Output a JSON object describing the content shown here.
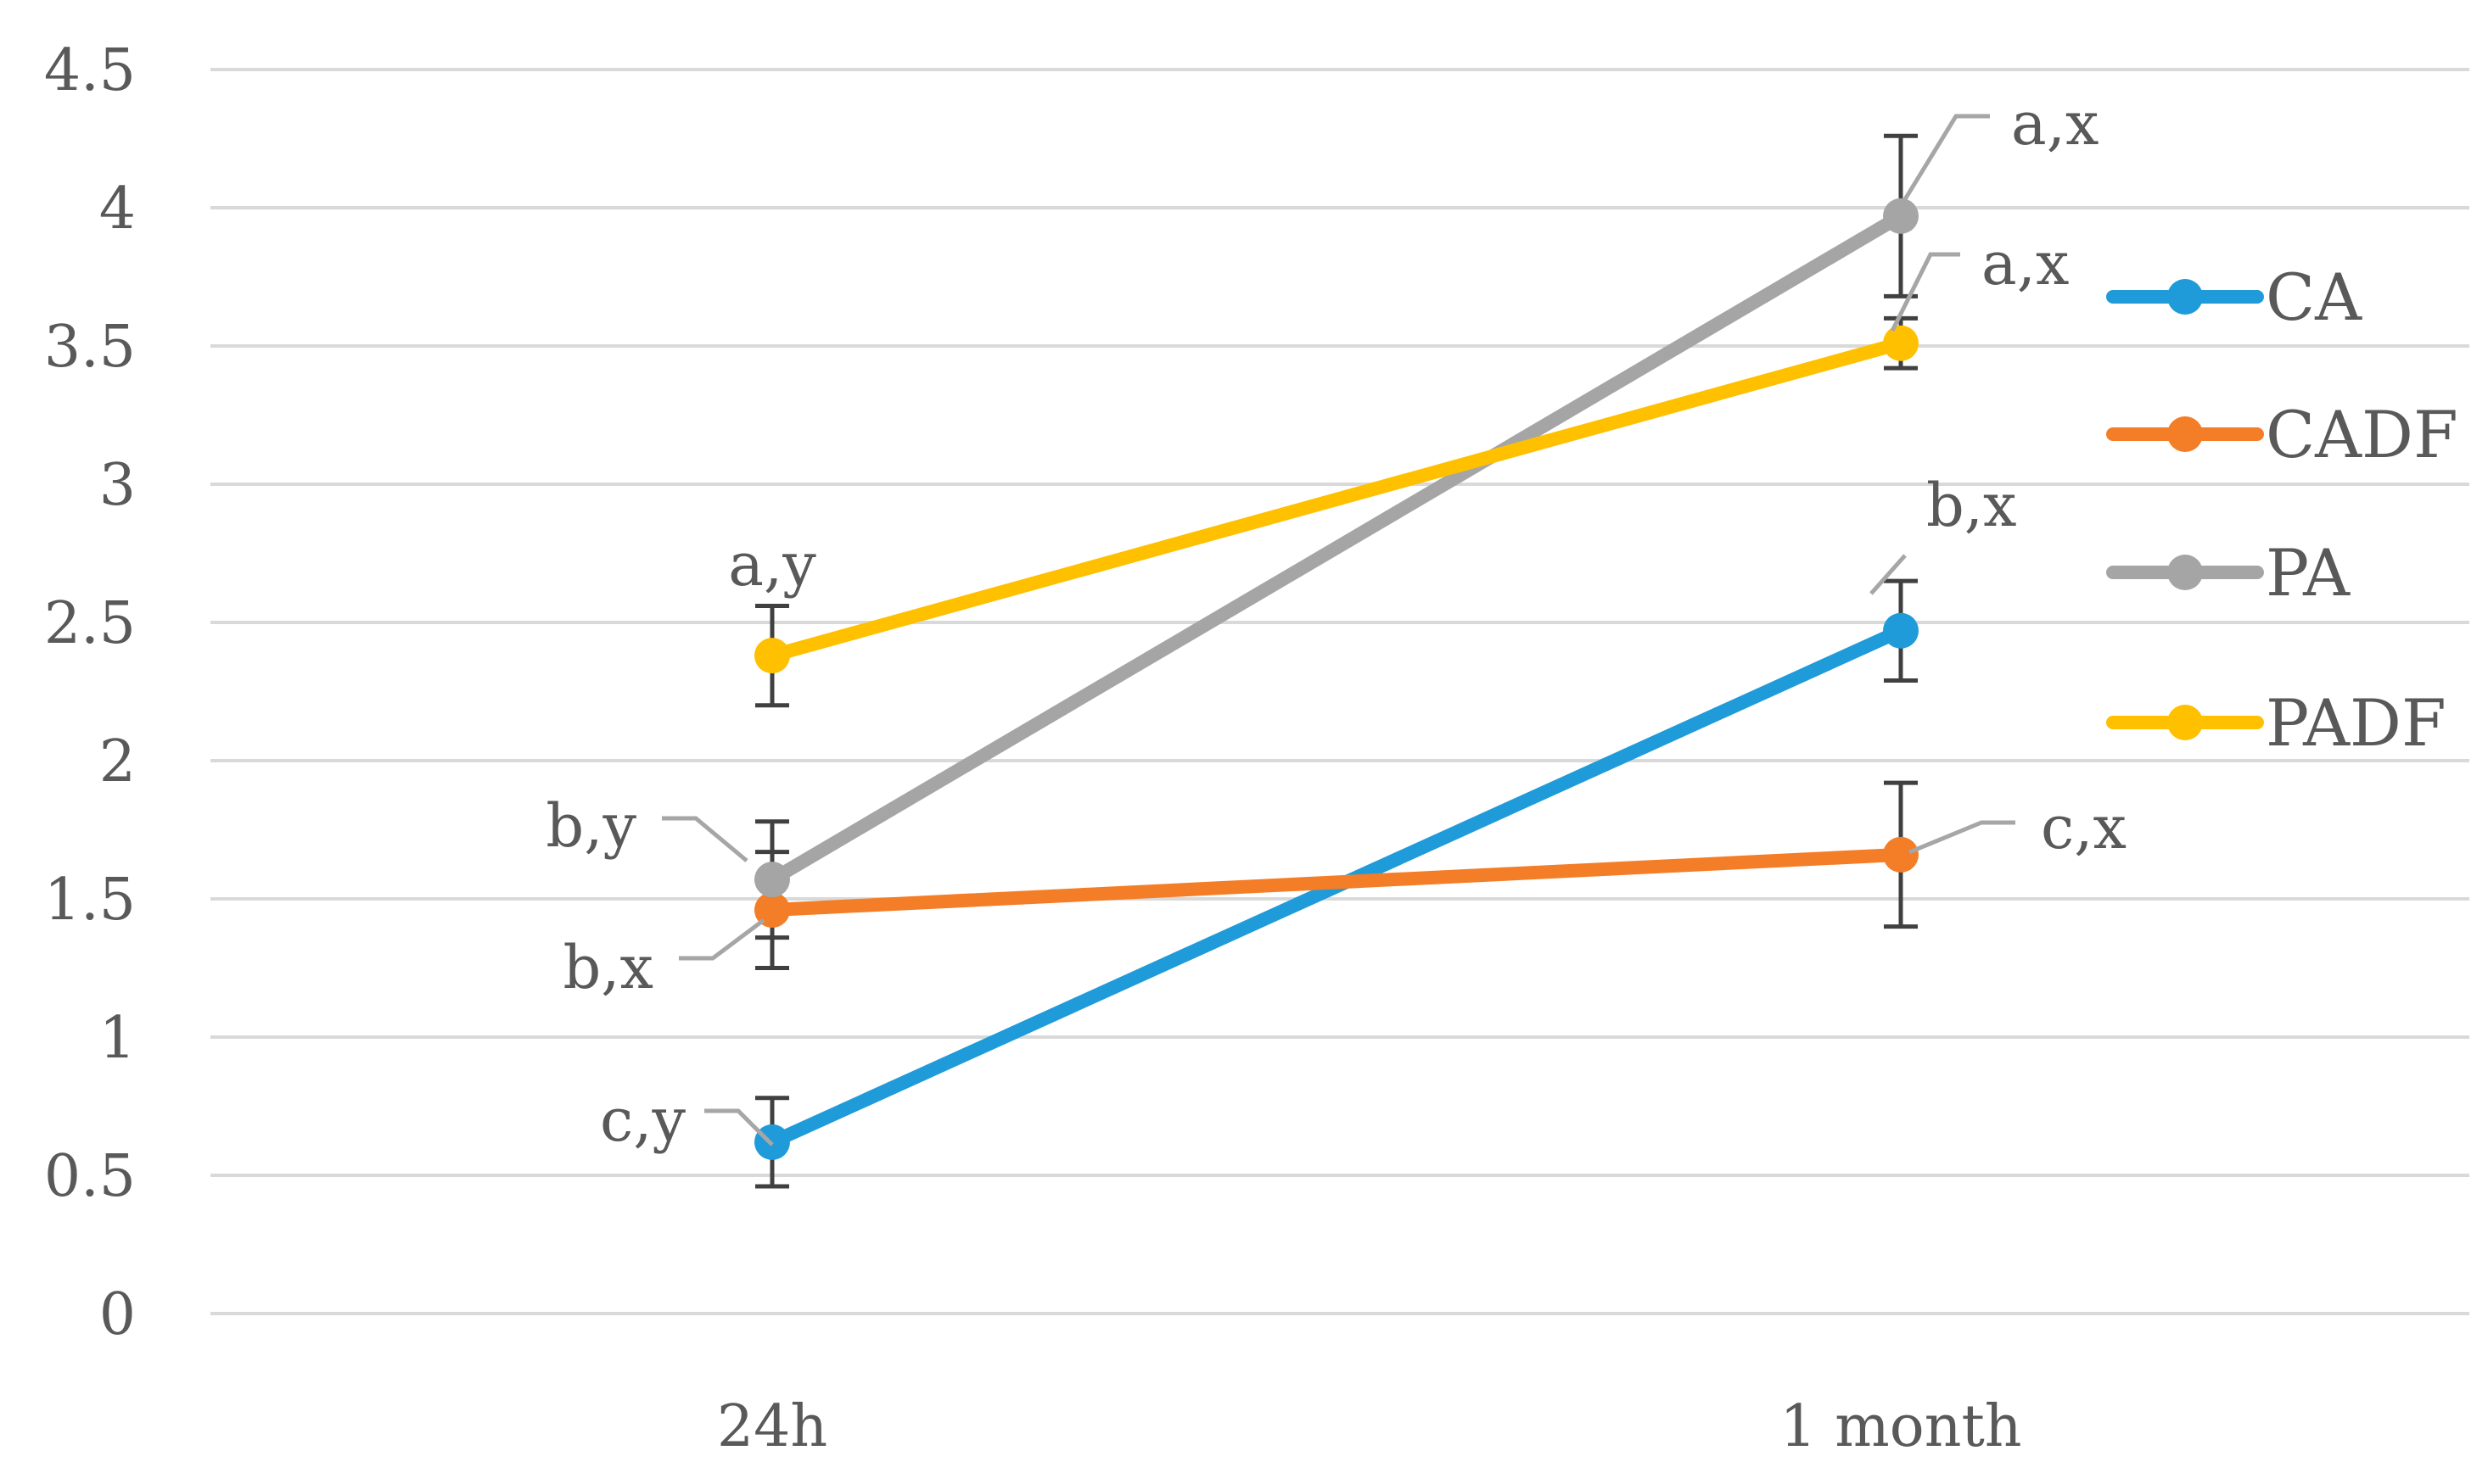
{
  "chart_data": {
    "type": "line",
    "categories": [
      "24h",
      "1 month"
    ],
    "ylim": [
      0,
      4.5
    ],
    "yticks": [
      "0",
      "0.5",
      "1",
      "1.5",
      "2",
      "2.5",
      "3",
      "3.5",
      "4",
      "4.5"
    ],
    "ytick_values": [
      0,
      0.5,
      1,
      1.5,
      2,
      2.5,
      3,
      3.5,
      4,
      4.5
    ],
    "grid": true,
    "legend_position": "right",
    "series": [
      {
        "name": "CA",
        "color": "#1f9bd9",
        "values": [
          0.62,
          2.47
        ],
        "errors": [
          0.16,
          0.18
        ],
        "labels": [
          "c,y",
          "b,x"
        ]
      },
      {
        "name": "CADF",
        "color": "#f47d27",
        "values": [
          1.46,
          1.66
        ],
        "errors": [
          0.21,
          0.26
        ],
        "labels": [
          "b,x",
          "c,x"
        ]
      },
      {
        "name": "PA",
        "color": "#a5a5a5",
        "values": [
          1.57,
          3.97
        ],
        "errors": [
          0.21,
          0.29
        ],
        "labels": [
          "b,y",
          "a,x"
        ]
      },
      {
        "name": "PADF",
        "color": "#ffc000",
        "values": [
          2.38,
          3.51
        ],
        "errors": [
          0.18,
          0.09
        ],
        "labels": [
          "a,y",
          "a,x"
        ]
      }
    ]
  }
}
